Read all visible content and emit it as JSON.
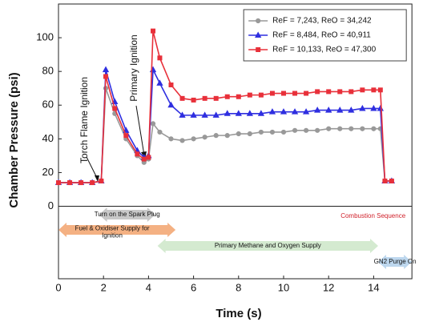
{
  "chart_data": {
    "type": "line",
    "xlabel": "Time (s)",
    "ylabel": "Chamber Pressure (psi)",
    "xlim": [
      0,
      15.7
    ],
    "ylim": [
      -43,
      120
    ],
    "xticks": [
      0,
      2,
      4,
      6,
      8,
      10,
      12,
      14
    ],
    "yticks": [
      0,
      20,
      40,
      60,
      80,
      100
    ],
    "legend": "upper right",
    "x": [
      0,
      0.5,
      1,
      1.5,
      1.9,
      2.1,
      2.5,
      3,
      3.5,
      3.8,
      4.0,
      4.2,
      4.5,
      5,
      5.5,
      6,
      6.5,
      7,
      7.5,
      8,
      8.5,
      9,
      9.5,
      10,
      10.5,
      11,
      11.5,
      12,
      12.5,
      13,
      13.5,
      14,
      14.3,
      14.5,
      14.8
    ],
    "series": [
      {
        "name": "ReF = 7,243,   ReO = 34,242",
        "color": "#999999",
        "marker": "circle",
        "values": [
          14,
          14,
          14,
          14,
          15,
          70,
          55,
          40,
          30,
          26,
          28,
          49,
          44,
          40,
          39,
          40,
          41,
          42,
          42,
          43,
          43,
          44,
          44,
          44,
          45,
          45,
          45,
          46,
          46,
          46,
          46,
          46,
          46,
          15,
          15
        ]
      },
      {
        "name": "ReF = 8,484,   ReO = 40,911",
        "color": "#2f2fe0",
        "marker": "triangle",
        "values": [
          14,
          14,
          14,
          14,
          15,
          81,
          62,
          45,
          33,
          29,
          30,
          81,
          73,
          60,
          54,
          54,
          54,
          54,
          55,
          55,
          55,
          55,
          56,
          56,
          56,
          56,
          57,
          57,
          57,
          57,
          58,
          58,
          58,
          15,
          15
        ]
      },
      {
        "name": "ReF = 10,133,   ReO = 47,300",
        "color": "#e8303a",
        "marker": "square",
        "values": [
          14,
          14,
          14,
          14,
          15,
          77,
          58,
          42,
          31,
          28,
          29,
          104,
          88,
          72,
          64,
          63,
          64,
          64,
          65,
          65,
          66,
          66,
          67,
          67,
          67,
          67,
          68,
          68,
          68,
          68,
          69,
          69,
          69,
          15,
          15
        ]
      }
    ],
    "annotations": [
      "Torch Flame Ignition",
      "Primary Ignition"
    ],
    "sequence_title": "Combustion Sequence",
    "sequence": [
      {
        "lines": [
          "Turn on the Spark Plug"
        ],
        "start": 1.8,
        "end": 4.3,
        "color": "#c8c8c8"
      },
      {
        "lines": [
          "Fuel & Oxidiser Supply for",
          "Ignition"
        ],
        "start": 0,
        "end": 5.2,
        "color": "#f4b183"
      },
      {
        "lines": [
          "Primary Methane and Oxygen Supply"
        ],
        "start": 4.4,
        "end": 14.2,
        "color": "#d4ead0"
      },
      {
        "lines": [
          "GN2 Purge On"
        ],
        "start": 14.2,
        "end": 15.7,
        "color": "#bdd7ee"
      }
    ]
  }
}
